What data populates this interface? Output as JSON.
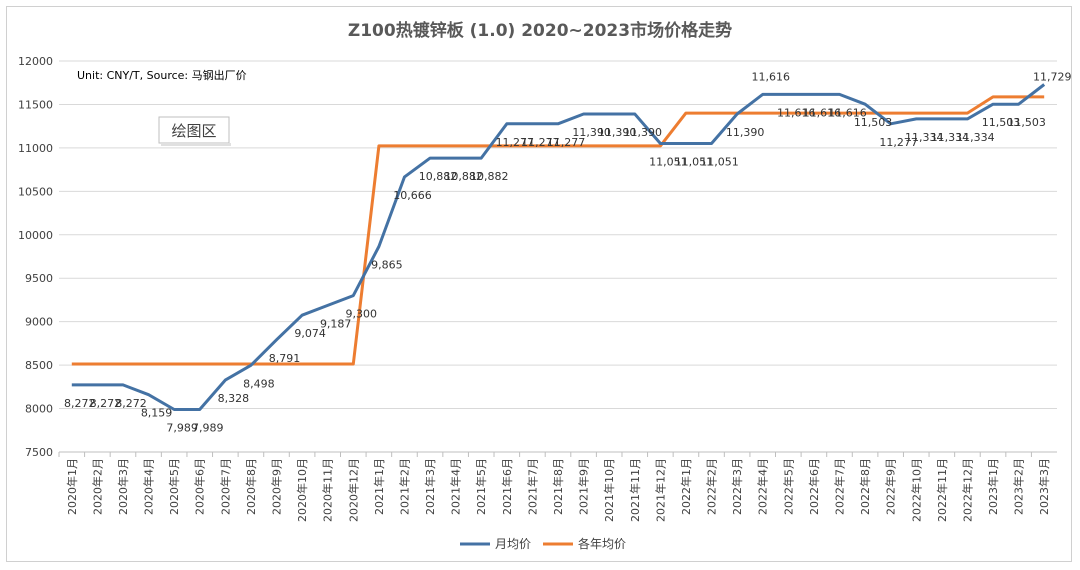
{
  "chart_data": {
    "type": "line",
    "title": "Z100热镀锌板 (1.0) 2020~2023市场价格走势",
    "note": "Unit: CNY/T, Source: 马钢出厂价",
    "plot_area_tip": "绘图区",
    "ylim": [
      7500,
      12000
    ],
    "yticks": [
      7500,
      8000,
      8500,
      9000,
      9500,
      10000,
      10500,
      11000,
      11500,
      12000
    ],
    "grid": true,
    "legend_position": "bottom",
    "categories": [
      "2020年1月",
      "2020年2月",
      "2020年3月",
      "2020年4月",
      "2020年5月",
      "2020年6月",
      "2020年7月",
      "2020年8月",
      "2020年9月",
      "2020年10月",
      "2020年11月",
      "2020年12月",
      "2021年1月",
      "2021年2月",
      "2021年3月",
      "2021年4月",
      "2021年5月",
      "2021年6月",
      "2021年7月",
      "2021年8月",
      "2021年9月",
      "2021年10月",
      "2021年11月",
      "2021年12月",
      "2022年1月",
      "2022年2月",
      "2022年3月",
      "2022年4月",
      "2022年5月",
      "2022年6月",
      "2022年7月",
      "2022年8月",
      "2022年9月",
      "2022年10月",
      "2022年11月",
      "2022年12月",
      "2023年1月",
      "2023年2月",
      "2023年3月"
    ],
    "series": [
      {
        "name": "月均价",
        "color": "#4472A4",
        "values": [
          8272,
          8272,
          8272,
          8159,
          7989,
          7989,
          8328,
          8498,
          8791,
          9074,
          9187,
          9300,
          9865,
          10666,
          10882,
          10882,
          10882,
          11277,
          11277,
          11277,
          11390,
          11390,
          11390,
          11051,
          11051,
          11051,
          11390,
          11616,
          11616,
          11616,
          11616,
          11503,
          11277,
          11334,
          11334,
          11334,
          11503,
          11503,
          11729
        ]
      },
      {
        "name": "各年均价",
        "color": "#ED7D31",
        "values": [
          8513,
          8513,
          8513,
          8513,
          8513,
          8513,
          8513,
          8513,
          8513,
          8513,
          8513,
          8513,
          11023,
          11023,
          11023,
          11023,
          11023,
          11023,
          11023,
          11023,
          11023,
          11023,
          11023,
          11023,
          11400,
          11400,
          11400,
          11400,
          11400,
          11400,
          11400,
          11400,
          11400,
          11400,
          11400,
          11400,
          11587,
          11587,
          11587
        ]
      }
    ],
    "data_labels": [
      {
        "i": 0,
        "text": "8,272"
      },
      {
        "i": 1,
        "text": "8,272"
      },
      {
        "i": 2,
        "text": "8,272"
      },
      {
        "i": 3,
        "text": "8,159"
      },
      {
        "i": 4,
        "text": "7,989"
      },
      {
        "i": 5,
        "text": "7,989"
      },
      {
        "i": 6,
        "text": "8,328"
      },
      {
        "i": 7,
        "text": "8,498"
      },
      {
        "i": 8,
        "text": "8,791"
      },
      {
        "i": 9,
        "text": "9,074"
      },
      {
        "i": 10,
        "text": "9,187"
      },
      {
        "i": 11,
        "text": "9,300"
      },
      {
        "i": 12,
        "text": "9,865"
      },
      {
        "i": 13,
        "text": "10,666"
      },
      {
        "i": 14,
        "text": "10,882"
      },
      {
        "i": 15,
        "text": "10,882"
      },
      {
        "i": 16,
        "text": "10,882"
      },
      {
        "i": 17,
        "text": "11,277"
      },
      {
        "i": 18,
        "text": "11,277"
      },
      {
        "i": 19,
        "text": "11,277"
      },
      {
        "i": 20,
        "text": "11,390"
      },
      {
        "i": 21,
        "text": "11,390"
      },
      {
        "i": 22,
        "text": "11,390"
      },
      {
        "i": 23,
        "text": "11,051"
      },
      {
        "i": 24,
        "text": "11,051"
      },
      {
        "i": 25,
        "text": "11,051"
      },
      {
        "i": 26,
        "text": "11,390"
      },
      {
        "i": 27,
        "text": "11,616"
      },
      {
        "i": 28,
        "text": "11,616"
      },
      {
        "i": 29,
        "text": "11,616"
      },
      {
        "i": 30,
        "text": "11,616"
      },
      {
        "i": 31,
        "text": "11,503"
      },
      {
        "i": 32,
        "text": "11,277"
      },
      {
        "i": 33,
        "text": "11,334"
      },
      {
        "i": 34,
        "text": "11,334"
      },
      {
        "i": 35,
        "text": "11,334"
      },
      {
        "i": 36,
        "text": "11,503"
      },
      {
        "i": 37,
        "text": "11,503"
      },
      {
        "i": 38,
        "text": "11,729"
      }
    ]
  }
}
